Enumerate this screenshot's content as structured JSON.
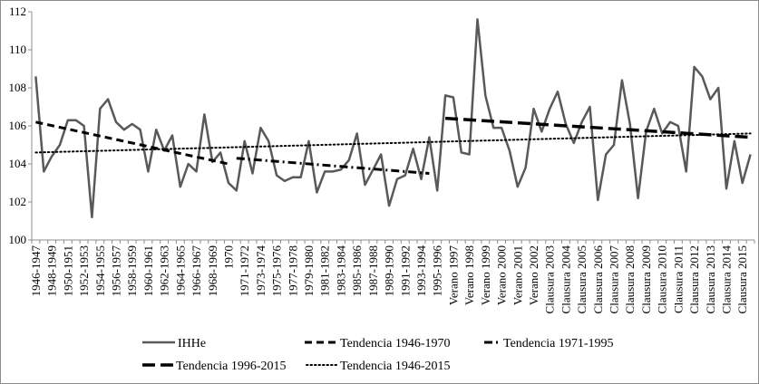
{
  "chart_data": {
    "type": "line",
    "title": "",
    "xlabel": "",
    "ylabel": "",
    "ylim": [
      100,
      112
    ],
    "yticks": [
      100,
      102,
      104,
      106,
      108,
      110,
      112
    ],
    "grid": false,
    "legend_position": "bottom",
    "categories": [
      "1946-1947",
      "",
      "1948-1949",
      "",
      "1950-1951",
      "",
      "1952-1953",
      "",
      "1954-1955",
      "",
      "1956-1957",
      "",
      "1958-1959",
      "",
      "1960-1961",
      "",
      "1962-1963",
      "",
      "1964-1965",
      "",
      "1966-1967",
      "",
      "1968-1969",
      "",
      "1970",
      "",
      "1971-1972",
      "",
      "1973-1974",
      "",
      "1975-1976",
      "",
      "1977-1978",
      "",
      "1979-1980",
      "",
      "1981-1982",
      "",
      "1983-1984",
      "",
      "1985-1986",
      "",
      "1987-1988",
      "",
      "1989-1990",
      "",
      "1991-1992",
      "",
      "1993-1994",
      "",
      "1995-1996",
      "",
      "Verano 1997",
      "",
      "Verano 1998",
      "",
      "Verano 1999",
      "",
      "Verano 2000",
      "",
      "Verano 2001",
      "",
      "Verano 2002",
      "",
      "Clausura 2003",
      "",
      "Clausura 2004",
      "",
      "Clausura 2005",
      "",
      "Clausura 2006",
      "",
      "Clausura 2007",
      "",
      "Clausura 2008",
      "",
      "Clausura 2009",
      "",
      "Clausura 2010",
      "",
      "Clausura 2011",
      "",
      "Clausura 2012",
      "",
      "Clausura 2013",
      "",
      "Clausura 2014",
      "",
      "Clausura 2015",
      ""
    ],
    "series": [
      {
        "name": "IHHe",
        "style": "solid",
        "color": "#595959",
        "values": [
          108.6,
          103.6,
          104.4,
          105.0,
          106.3,
          106.3,
          106.0,
          101.2,
          106.9,
          107.4,
          106.2,
          105.8,
          106.1,
          105.8,
          103.6,
          105.8,
          104.7,
          105.5,
          102.8,
          104.0,
          103.6,
          106.6,
          104.1,
          104.6,
          103.0,
          102.6,
          105.2,
          103.5,
          105.9,
          105.2,
          103.4,
          103.1,
          103.3,
          103.3,
          105.2,
          102.5,
          103.6,
          103.6,
          103.7,
          104.2,
          105.6,
          102.9,
          103.7,
          104.5,
          101.8,
          103.2,
          103.4,
          104.8,
          103.2,
          105.4,
          102.6,
          107.6,
          107.5,
          104.6,
          104.5,
          111.6,
          107.6,
          105.9,
          105.9,
          104.7,
          102.8,
          103.8,
          106.9,
          105.7,
          106.9,
          107.8,
          106.1,
          105.1,
          106.2,
          107.0,
          102.1,
          104.5,
          105.0,
          108.4,
          106.1,
          102.2,
          105.7,
          106.9,
          105.6,
          106.2,
          106.0,
          103.6,
          109.1,
          108.6,
          107.4,
          108.0,
          102.7,
          105.2,
          103.0,
          104.5
        ]
      },
      {
        "name": "Tendencia 1946-1970",
        "style": "dashed",
        "color": "#000000",
        "from_index": 0,
        "to_index": 24,
        "start_value": 106.2,
        "end_value": 104.0
      },
      {
        "name": "Tendencia 1971-1995",
        "style": "dash-dot",
        "color": "#000000",
        "from_index": 25,
        "to_index": 49,
        "start_value": 104.3,
        "end_value": 103.5
      },
      {
        "name": "Tendencia 1996-2015",
        "style": "long-dash",
        "color": "#000000",
        "from_index": 51,
        "to_index": 89,
        "start_value": 106.4,
        "end_value": 105.4
      },
      {
        "name": "Tendencia 1946-2015",
        "style": "dotted",
        "color": "#000000",
        "from_index": 0,
        "to_index": 89,
        "start_value": 104.6,
        "end_value": 105.6
      }
    ]
  }
}
